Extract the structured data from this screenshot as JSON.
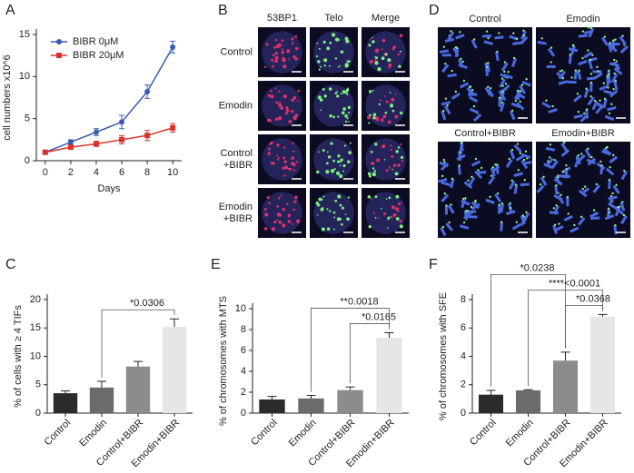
{
  "chart_data": [
    {
      "type": "line",
      "label": "A",
      "ylabel": "cell numbers x10^6",
      "xlabel": "Days",
      "x": [
        0,
        2,
        4,
        6,
        8,
        10
      ],
      "xlim": [
        -0.7,
        10.7
      ],
      "xticks": [
        0,
        2,
        4,
        6,
        8,
        10
      ],
      "ylim": [
        0,
        15
      ],
      "yticks": [
        0,
        5,
        10,
        15
      ],
      "series": [
        {
          "name": "BIBR 0μM",
          "color": "#3a5bb0",
          "marker": "circle",
          "values": [
            1,
            2.2,
            3.4,
            4.6,
            8.2,
            13.5
          ],
          "errors": [
            0.1,
            0.3,
            0.4,
            0.8,
            0.8,
            0.7
          ]
        },
        {
          "name": "BIBR 20μM",
          "color": "#d9342b",
          "marker": "square",
          "values": [
            1,
            1.6,
            2.0,
            2.5,
            3.0,
            3.9
          ],
          "errors": [
            0.1,
            0.2,
            0.3,
            0.5,
            0.6,
            0.5
          ]
        }
      ]
    },
    {
      "type": "bar",
      "label": "C",
      "ylabel": "% of cells with ≥ 4 TIFs",
      "categories": [
        "Control",
        "Emodin",
        "Control+BIBR",
        "Emodin+BIBR"
      ],
      "values": [
        3.5,
        4.5,
        8.2,
        15.2
      ],
      "errors": [
        0.4,
        1.1,
        0.9,
        1.4
      ],
      "colors": [
        "#2b2b2b",
        "#6b6b6b",
        "#8c8c8c",
        "#e6e6e6"
      ],
      "ylim": [
        0,
        20
      ],
      "yticks": [
        0,
        5,
        10,
        15,
        20
      ],
      "annotations": [
        {
          "text": "*0.0306",
          "pair": [
            1,
            3
          ]
        }
      ]
    },
    {
      "type": "bar",
      "label": "E",
      "ylabel": "% of chromosomes with MTS",
      "categories": [
        "Control",
        "Emodin",
        "Control+BIBR",
        "Emodin+BIBR"
      ],
      "values": [
        1.3,
        1.4,
        2.2,
        7.2
      ],
      "errors": [
        0.3,
        0.3,
        0.3,
        0.5
      ],
      "colors": [
        "#2b2b2b",
        "#6b6b6b",
        "#8c8c8c",
        "#e6e6e6"
      ],
      "ylim": [
        0,
        10
      ],
      "yticks": [
        0,
        2,
        4,
        6,
        8,
        10
      ],
      "annotations": [
        {
          "text": "**0.0018",
          "pair": [
            1,
            3
          ]
        },
        {
          "text": "*0.0165",
          "pair": [
            2,
            3
          ]
        }
      ]
    },
    {
      "type": "bar",
      "label": "F",
      "ylabel": "% of chromosomes with SFE",
      "categories": [
        "Control",
        "Emodin",
        "Control+BIBR",
        "Emodin+BIBR"
      ],
      "values": [
        1.3,
        1.6,
        3.7,
        6.8
      ],
      "errors": [
        0.3,
        0.05,
        0.6,
        0.15
      ],
      "colors": [
        "#2b2b2b",
        "#6b6b6b",
        "#8c8c8c",
        "#e6e6e6"
      ],
      "ylim": [
        0,
        8
      ],
      "yticks": [
        0,
        2,
        4,
        6,
        8
      ],
      "annotations": [
        {
          "text": "*0.0238",
          "pair": [
            0,
            2
          ]
        },
        {
          "text": "****<0.0001",
          "pair": [
            1,
            3
          ]
        },
        {
          "text": "*0.0368",
          "pair": [
            2,
            3
          ]
        }
      ]
    }
  ],
  "images": [
    {
      "label": "B",
      "columns": [
        "53BP1",
        "Telo",
        "Merge"
      ],
      "rows": [
        [
          "Control"
        ],
        [
          "Emodin"
        ],
        [
          "Control",
          "+BIBR"
        ],
        [
          "Emodin",
          "+BIBR"
        ]
      ]
    },
    {
      "label": "D",
      "panels": [
        "Control",
        "Emodin",
        "Control+BIBR",
        "Emodin+BIBR"
      ]
    }
  ]
}
